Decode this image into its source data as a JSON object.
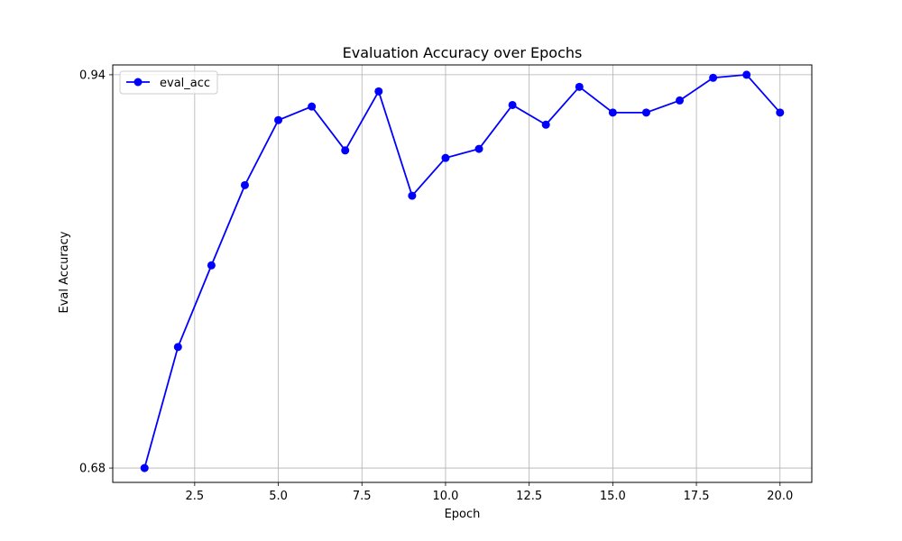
{
  "chart_data": {
    "type": "line",
    "title": "Evaluation Accuracy over Epochs",
    "xlabel": "Epoch",
    "ylabel": "Eval Accuracy",
    "xlim": [
      0.05,
      20.95
    ],
    "ylim": [
      0.6705,
      0.9465
    ],
    "xticks": [
      2.5,
      5.0,
      7.5,
      10.0,
      12.5,
      15.0,
      17.5,
      20.0
    ],
    "xtick_labels": [
      "2.5",
      "5.0",
      "7.5",
      "10.0",
      "12.5",
      "15.0",
      "17.5",
      "20.0"
    ],
    "yticks": [
      0.68,
      0.94
    ],
    "ytick_labels": [
      "0.68",
      "0.94"
    ],
    "grid": true,
    "legend_position": "top-left",
    "color": "#0000ff",
    "series": [
      {
        "name": "eval_acc",
        "x": [
          1,
          2,
          3,
          4,
          5,
          6,
          7,
          8,
          9,
          10,
          11,
          12,
          13,
          14,
          15,
          16,
          17,
          18,
          19,
          20
        ],
        "values": [
          0.68,
          0.76,
          0.814,
          0.867,
          0.91,
          0.919,
          0.89,
          0.929,
          0.86,
          0.885,
          0.891,
          0.92,
          0.907,
          0.932,
          0.915,
          0.915,
          0.923,
          0.938,
          0.94,
          0.915
        ]
      }
    ]
  }
}
